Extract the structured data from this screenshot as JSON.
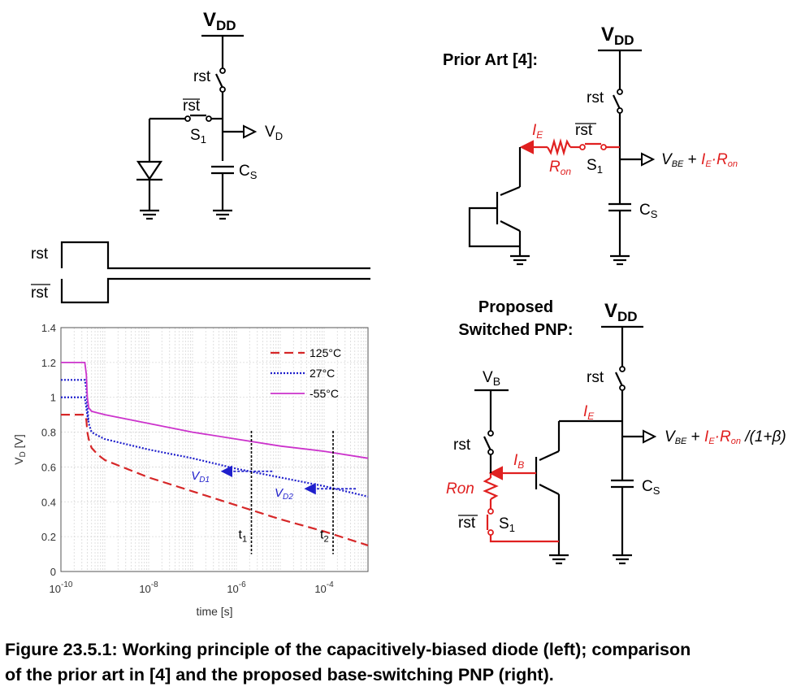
{
  "left_circuit": {
    "supply": "V",
    "supply_sub": "DD",
    "rst": "rst",
    "rst_bar": "rst",
    "switch": "S",
    "switch_sub": "1",
    "output": "V",
    "output_sub": "D",
    "cap": "C",
    "cap_sub": "S"
  },
  "timing": {
    "rst": "rst",
    "rst_bar": "rst"
  },
  "prior_art": {
    "title": "Prior Art [4]:",
    "supply": "V",
    "supply_sub": "DD",
    "rst": "rst",
    "rst_bar": "rst",
    "ie": "I",
    "ie_sub": "E",
    "ron": "R",
    "ron_sub": "on",
    "switch": "S",
    "switch_sub": "1",
    "cap": "C",
    "cap_sub": "S",
    "out_vbe": "V",
    "out_vbe_sub": "BE",
    "out_plus": " + ",
    "out_ie": "I",
    "out_ie_sub": "E",
    "out_dot": "·",
    "out_ron": "R",
    "out_ron_sub": "on"
  },
  "proposed": {
    "title_line1": "Proposed",
    "title_line2": "Switched PNP:",
    "supply": "V",
    "supply_sub": "DD",
    "vb": "V",
    "vb_sub": "B",
    "rst_left": "rst",
    "rst_right": "rst",
    "rst_bar": "rst",
    "ib": "I",
    "ib_sub": "B",
    "ie": "I",
    "ie_sub": "E",
    "ron": "Ron",
    "switch": "S",
    "switch_sub": "1",
    "cap": "C",
    "cap_sub": "S",
    "out_vbe": "V",
    "out_vbe_sub": "BE",
    "out_plus": " + ",
    "out_ie": "I",
    "out_ie_sub": "E",
    "out_dot": "·",
    "out_ron": "R",
    "out_ron_sub": "on",
    "out_tail": " /(1+β)"
  },
  "chart_data": {
    "type": "line",
    "xlabel": "time [s]",
    "ylabel": "V",
    "ylabel_sub": "D",
    "ylabel_unit": " [V]",
    "xscale": "log",
    "xlim": [
      1e-10,
      0.001
    ],
    "ylim": [
      0,
      1.4
    ],
    "grid": true,
    "legend_position": "top-right",
    "x_ticks": [
      {
        "base": "10",
        "exp": "-10",
        "value": 1e-10
      },
      {
        "base": "10",
        "exp": "-8",
        "value": 1e-08
      },
      {
        "base": "10",
        "exp": "-6",
        "value": 1e-06
      },
      {
        "base": "10",
        "exp": "-4",
        "value": 0.0001
      }
    ],
    "y_ticks": [
      "0",
      "0.2",
      "0.4",
      "0.6",
      "0.8",
      "1",
      "1.2",
      "1.4"
    ],
    "y_tick_values": [
      0,
      0.2,
      0.4,
      0.6,
      0.8,
      1.0,
      1.2,
      1.4
    ],
    "colors": {
      "125C": "#d62728",
      "27C": "#1f1fcc",
      "-55C": "#cc33cc"
    },
    "series": [
      {
        "name": "125°C",
        "style": "dashed",
        "color": "#d62728",
        "x": [
          1e-10,
          3.5e-10,
          3.8e-10,
          4e-10,
          4.3e-10,
          5e-10,
          7e-10,
          1e-09,
          1e-08,
          1e-07,
          1e-06,
          1e-05,
          0.0001,
          0.001
        ],
        "y": [
          0.9,
          0.9,
          0.87,
          0.8,
          0.76,
          0.71,
          0.67,
          0.64,
          0.54,
          0.46,
          0.38,
          0.3,
          0.23,
          0.15
        ]
      },
      {
        "name": "27°C",
        "style": "dotted",
        "color": "#1f1fcc",
        "x": [
          1e-10,
          3.5e-10,
          3.8e-10,
          4e-10,
          4.3e-10,
          5e-10,
          7e-10,
          1e-09,
          1e-08,
          1e-07,
          1e-06,
          1e-05,
          0.0001,
          0.001
        ],
        "y": [
          1.1,
          1.1,
          1.05,
          0.95,
          0.85,
          0.8,
          0.78,
          0.76,
          0.7,
          0.65,
          0.59,
          0.54,
          0.49,
          0.43
        ]
      },
      {
        "name": "-55°C",
        "style": "solid",
        "color": "#cc33cc",
        "x": [
          1e-10,
          3.5e-10,
          3.8e-10,
          4e-10,
          4.3e-10,
          5e-10,
          7e-10,
          1e-09,
          1e-08,
          1e-07,
          1e-06,
          1e-05,
          0.0001,
          0.001
        ],
        "y": [
          1.2,
          1.2,
          1.13,
          1.0,
          0.94,
          0.92,
          0.91,
          0.9,
          0.85,
          0.8,
          0.76,
          0.72,
          0.69,
          0.65
        ]
      }
    ],
    "extra_start_levels": [
      1.0
    ],
    "annotations": [
      {
        "label": "V",
        "label_sub": "D1",
        "x": 2e-06,
        "y": 0.575
      },
      {
        "label": "V",
        "label_sub": "D2",
        "x": 0.00016,
        "y": 0.475
      },
      {
        "label": "t",
        "label_sub": "1",
        "x": 2.2e-06
      },
      {
        "label": "t",
        "label_sub": "2",
        "x": 0.00016
      }
    ]
  },
  "caption": {
    "line1": "Figure 23.5.1: Working principle of the capacitively-biased diode (left); comparison",
    "line2": "of the prior art in [4] and the proposed base-switching PNP (right)."
  }
}
